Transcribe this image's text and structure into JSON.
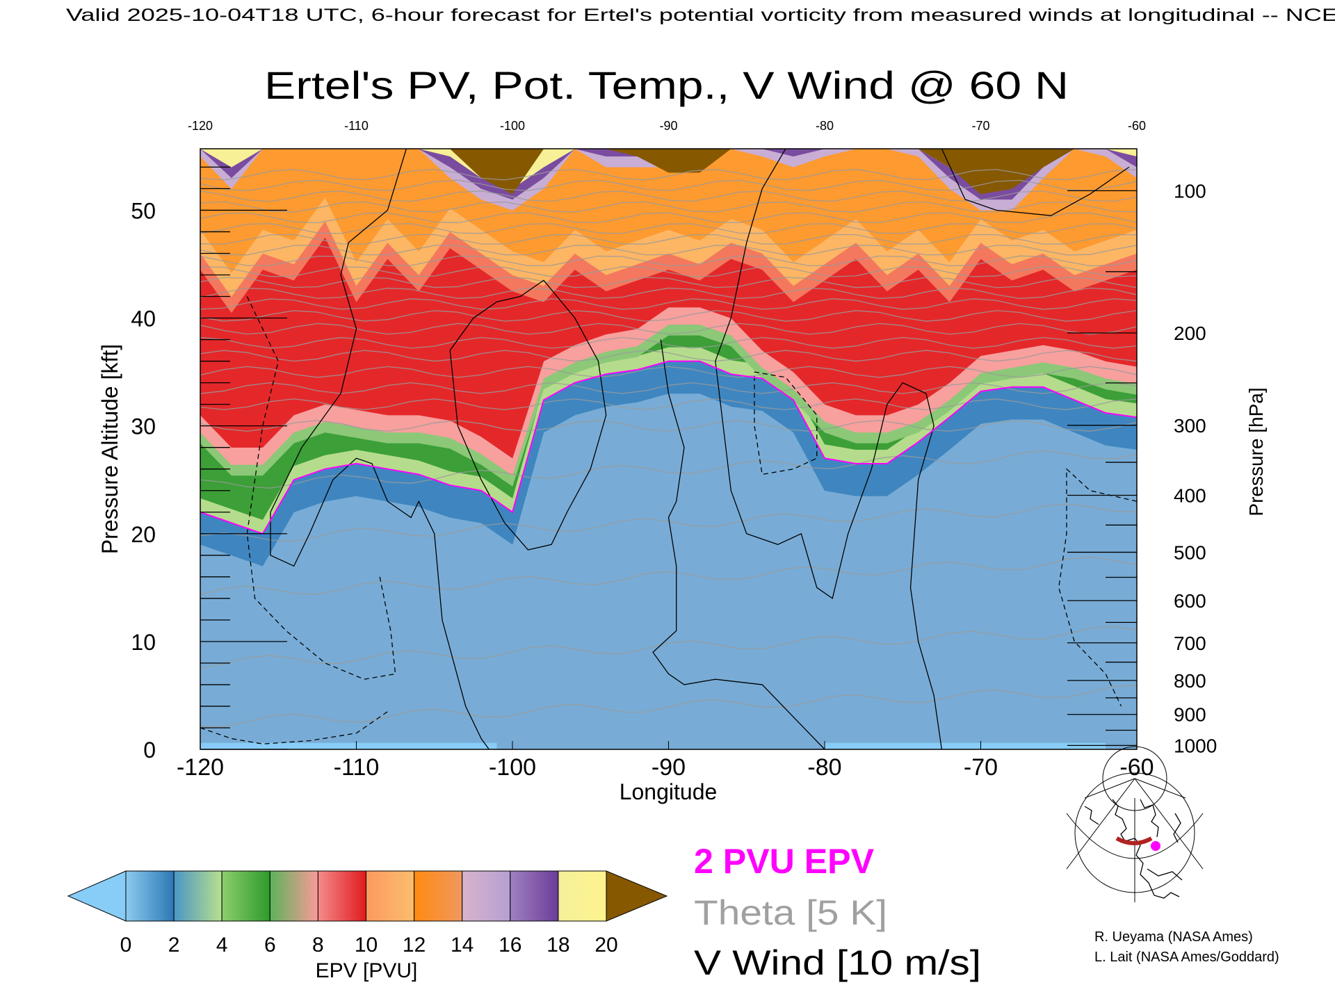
{
  "header": {
    "subtitle": "Valid 2025-10-04T18 UTC, 6-hour forecast for Ertel's potential vorticity from measured winds at longitudinal -- NCE",
    "title": "Ertel's PV, Pot. Temp., V Wind @ 60 N"
  },
  "chart_data": {
    "type": "heatmap",
    "title": "Ertel's PV, Pot. Temp., V Wind @ 60 N",
    "xlabel": "Longitude",
    "ylabel": "Pressure Altitude [kft]",
    "y2label": "Pressure [hPa]",
    "xlim": [
      -120,
      -60
    ],
    "ylim": [
      0,
      55.7
    ],
    "x_ticks": [
      "-120",
      "-110",
      "-100",
      "-90",
      "-80",
      "-70",
      "-60"
    ],
    "x_tick_values": [
      -120,
      -110,
      -100,
      -90,
      -80,
      -70,
      -60
    ],
    "y_ticks": [
      "0",
      "10",
      "20",
      "30",
      "40",
      "50"
    ],
    "y_tick_values": [
      0,
      10,
      20,
      30,
      40,
      50
    ],
    "y2_ticks": [
      "100",
      "200",
      "300",
      "400",
      "500",
      "600",
      "700",
      "800",
      "900",
      "1000"
    ],
    "y2_tick_values": [
      100,
      200,
      300,
      400,
      500,
      600,
      700,
      800,
      900,
      1000
    ],
    "lon": [
      -120,
      -118,
      -116,
      -114,
      -112,
      -110,
      -108,
      -106,
      -104,
      -102,
      -100,
      -98,
      -96,
      -94,
      -92,
      -90,
      -88,
      -86,
      -84,
      -82,
      -80,
      -78,
      -76,
      -74,
      -72,
      -70,
      -68,
      -66,
      -64,
      -62,
      -60
    ],
    "pv2_kft": [
      22,
      21,
      20,
      25,
      26,
      26.5,
      26,
      25.5,
      24.5,
      24,
      22,
      32.4,
      34,
      34.8,
      35.2,
      36,
      36,
      34.8,
      34.4,
      32.4,
      27,
      26.5,
      26.5,
      28.5,
      30.8,
      33.2,
      33.6,
      33.6,
      32.4,
      31.2,
      30.8
    ],
    "pv6_kft": [
      31,
      28,
      28,
      31,
      32,
      31.5,
      31,
      31,
      30.5,
      29,
      27,
      36,
      37.5,
      38.5,
      39,
      41,
      41,
      40,
      37,
      35,
      32,
      31,
      31,
      32,
      34,
      36.5,
      37,
      37.5,
      37,
      36,
      35.5
    ],
    "pv10_kft": [
      46,
      42,
      46,
      45,
      49,
      43,
      47,
      44,
      48,
      46,
      44,
      43,
      46,
      44,
      45,
      46,
      45,
      47,
      46,
      43,
      45,
      47,
      44,
      46,
      43,
      47,
      45,
      46,
      44,
      45,
      46
    ],
    "pv14_kft": [
      55,
      52,
      57,
      56,
      58,
      56,
      57,
      57,
      53,
      51,
      50,
      52,
      57,
      54,
      54,
      54,
      55,
      57,
      55,
      54,
      55,
      57,
      56,
      55,
      52,
      50,
      50,
      53,
      56,
      55,
      53
    ],
    "pv20_kft": [
      60,
      60,
      60,
      60,
      60,
      60,
      60,
      60,
      60,
      53,
      51.5,
      58,
      60,
      60,
      55,
      53.5,
      53.5,
      56,
      60,
      60,
      60,
      60,
      60,
      60,
      54,
      51.5,
      52,
      54,
      60,
      60,
      60
    ],
    "theta_levels_K": [
      280,
      290,
      300,
      310,
      320,
      330,
      335,
      340,
      345,
      350,
      355,
      360,
      365,
      370,
      375,
      380,
      385,
      390,
      395,
      400,
      405,
      410,
      415,
      420,
      425,
      430
    ],
    "theta_mean_alt_kft": [
      4,
      9.5,
      16,
      21,
      26,
      30,
      32,
      33.5,
      35,
      36.5,
      37.7,
      39,
      40.2,
      41.3,
      42.3,
      43.3,
      44.3,
      45.3,
      46.3,
      47.3,
      48.3,
      49.3,
      50.3,
      51.3,
      52.3,
      53.3
    ],
    "v_wind_contours": [
      {
        "value": 0,
        "style": "solid",
        "points": [
          [
            -106.8,
            55.7
          ],
          [
            -108,
            50
          ],
          [
            -110.5,
            47
          ],
          [
            -111,
            44
          ],
          [
            -110,
            39
          ],
          [
            -111,
            33
          ],
          [
            -113.5,
            28
          ],
          [
            -115.5,
            22
          ],
          [
            -115.5,
            18
          ],
          [
            -114,
            17
          ],
          [
            -113,
            20
          ],
          [
            -111.5,
            25
          ],
          [
            -110,
            27
          ],
          [
            -109,
            26.5
          ],
          [
            -108,
            23
          ],
          [
            -106.5,
            21.5
          ],
          [
            -106,
            23
          ],
          [
            -105,
            20
          ],
          [
            -104.5,
            12
          ],
          [
            -103,
            4
          ],
          [
            -102,
            1
          ],
          [
            -101.5,
            0
          ]
        ]
      },
      {
        "value": 10,
        "style": "solid",
        "points": [
          [
            -104,
            37
          ],
          [
            -102.5,
            40
          ],
          [
            -101,
            41.5
          ],
          [
            -99.5,
            42
          ],
          [
            -98,
            43.5
          ],
          [
            -96,
            40
          ],
          [
            -94.5,
            36
          ],
          [
            -94,
            31
          ],
          [
            -95,
            26
          ],
          [
            -96.5,
            22
          ],
          [
            -97.5,
            19
          ],
          [
            -99,
            18.5
          ],
          [
            -100.5,
            21
          ],
          [
            -102,
            25
          ],
          [
            -103.5,
            30
          ],
          [
            -104,
            37
          ]
        ]
      },
      {
        "value": 0,
        "style": "solid",
        "points": [
          [
            -82.5,
            55.7
          ],
          [
            -84,
            52
          ],
          [
            -85,
            47
          ],
          [
            -86,
            40
          ],
          [
            -87,
            36
          ],
          [
            -86.5,
            30
          ],
          [
            -86,
            24
          ],
          [
            -85,
            20
          ],
          [
            -83,
            19
          ],
          [
            -81.5,
            20
          ],
          [
            -80.5,
            15
          ],
          [
            -79.5,
            14
          ],
          [
            -78.5,
            20
          ],
          [
            -77,
            26
          ],
          [
            -76,
            32
          ],
          [
            -75,
            34
          ],
          [
            -73.5,
            33
          ],
          [
            -73,
            30
          ],
          [
            -74,
            25
          ],
          [
            -74.5,
            15
          ],
          [
            -74,
            10
          ],
          [
            -73,
            5
          ],
          [
            -72.5,
            0
          ]
        ]
      },
      {
        "value": 0,
        "style": "solid",
        "points": [
          [
            -90.5,
            38
          ],
          [
            -90,
            33
          ],
          [
            -89,
            28
          ],
          [
            -89.5,
            23
          ],
          [
            -90,
            21.5
          ],
          [
            -89.5,
            17
          ],
          [
            -89.5,
            11
          ],
          [
            -91,
            9
          ],
          [
            -90,
            7
          ],
          [
            -89,
            6
          ],
          [
            -87,
            6.5
          ],
          [
            -84,
            6
          ],
          [
            -82,
            3
          ],
          [
            -80,
            0
          ]
        ]
      },
      {
        "value": 0,
        "style": "solid",
        "points": [
          [
            -72.5,
            55.7
          ],
          [
            -71,
            51
          ],
          [
            -69,
            50
          ],
          [
            -65.5,
            49.5
          ],
          [
            -63,
            51.5
          ],
          [
            -60.5,
            54
          ]
        ]
      },
      {
        "value": -10,
        "style": "dashed",
        "points": [
          [
            -84.5,
            35
          ],
          [
            -82.5,
            34.5
          ],
          [
            -80.5,
            31
          ],
          [
            -80.5,
            27
          ],
          [
            -82,
            26
          ],
          [
            -84,
            25.5
          ],
          [
            -84.5,
            30
          ],
          [
            -84.5,
            35
          ]
        ]
      },
      {
        "value": -10,
        "style": "dashed",
        "points": [
          [
            -60,
            23
          ],
          [
            -63,
            24
          ],
          [
            -64.5,
            26
          ],
          [
            -64.5,
            20
          ],
          [
            -65,
            15
          ],
          [
            -64,
            10
          ],
          [
            -62,
            7
          ],
          [
            -61,
            4
          ]
        ]
      },
      {
        "value": -10,
        "style": "dashed",
        "points": [
          [
            -108.5,
            16
          ],
          [
            -107.8,
            11
          ],
          [
            -107.5,
            7
          ],
          [
            -109.5,
            6.5
          ],
          [
            -112,
            8
          ],
          [
            -114.5,
            11
          ],
          [
            -116.5,
            14
          ],
          [
            -117,
            20
          ],
          [
            -116,
            30
          ],
          [
            -115,
            36
          ],
          [
            -117,
            42
          ]
        ]
      },
      {
        "value": 0,
        "style": "dashed",
        "points": [
          [
            -120,
            2
          ],
          [
            -118,
            1
          ],
          [
            -116,
            0.5
          ],
          [
            -113,
            0.8
          ],
          [
            -110,
            1.5
          ],
          [
            -108,
            3.5
          ]
        ]
      }
    ],
    "colorbar": {
      "label": "EPV [PVU]",
      "ticks": [
        "0",
        "2",
        "4",
        "6",
        "8",
        "10",
        "12",
        "14",
        "16",
        "18",
        "20"
      ],
      "under_color": "#87cdf7",
      "over_color": "#865800",
      "segments": [
        [
          "#8ccbef",
          "#2c77b5"
        ],
        [
          "#4b96c4",
          "#b7e08f"
        ],
        [
          "#8ccf6c",
          "#2e9a2c"
        ],
        [
          "#5cb35a",
          "#fa9a98"
        ],
        [
          "#f58b8b",
          "#e01b1e"
        ],
        [
          "#fb9a5e",
          "#fdbd6d"
        ],
        [
          "#ff8a10",
          "#f09860"
        ],
        [
          "#d8b4cc",
          "#b5a0d2"
        ],
        [
          "#a080c0",
          "#6a3d9a"
        ],
        [
          "#f4f09a",
          "#fff38e"
        ]
      ]
    }
  },
  "legend": {
    "pv_label": "2 PVU EPV",
    "theta_label": "Theta [5 K]",
    "wind_label": "V Wind [10 m/s]",
    "pv_color": "#ff00ff",
    "theta_color": "#a0a0a0",
    "wind_color": "#000000"
  },
  "credits": [
    "R. Ueyama (NASA Ames)",
    "L. Lait (NASA Ames/Goddard)"
  ]
}
